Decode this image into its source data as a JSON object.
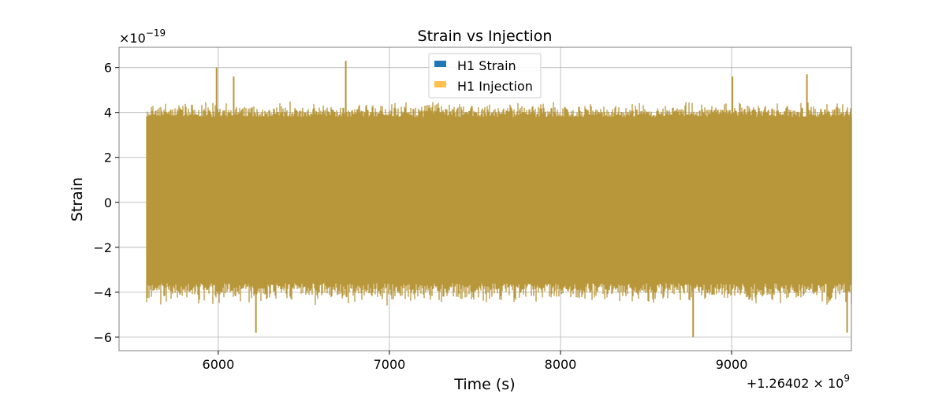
{
  "chart_data": {
    "type": "line",
    "title": "Strain vs Injection",
    "xlabel": "Time (s)",
    "ylabel": "Strain",
    "x_offset_label": "+1.26402 × 10",
    "x_offset_exponent": "9",
    "y_scale_label": "×10",
    "y_scale_exponent": "−19",
    "x_ticks": [
      6000,
      7000,
      8000,
      9000
    ],
    "x_tick_labels": [
      "6000",
      "7000",
      "8000",
      "9000"
    ],
    "y_ticks": [
      -6,
      -4,
      -2,
      0,
      2,
      4,
      6
    ],
    "y_tick_labels": [
      "−6",
      "−4",
      "−2",
      "0",
      "2",
      "4",
      "6"
    ],
    "xlim": [
      5420,
      9700
    ],
    "ylim": [
      -6.6,
      6.9
    ],
    "x_data_range": [
      5580,
      9700
    ],
    "grid": true,
    "legend_position": "top-center",
    "series": [
      {
        "name": "H1 Strain",
        "color": "#1f77b4",
        "typical_amplitude": [
          -3.6,
          3.8
        ],
        "noise_amplitude": [
          -4.6,
          4.5
        ],
        "peak_values": [
          {
            "x": 5990,
            "y": 6.0
          },
          {
            "x": 6090,
            "y": 5.6
          },
          {
            "x": 6745,
            "y": 6.3
          },
          {
            "x": 6220,
            "y": -5.8
          },
          {
            "x": 8775,
            "y": -6.0
          },
          {
            "x": 9005,
            "y": 5.6
          },
          {
            "x": 9440,
            "y": 5.7
          },
          {
            "x": 9675,
            "y": -5.8
          }
        ]
      },
      {
        "name": "H1 Injection",
        "color": "#ffa500",
        "alpha": 0.7
      }
    ],
    "composite_color": "#b8963a"
  }
}
